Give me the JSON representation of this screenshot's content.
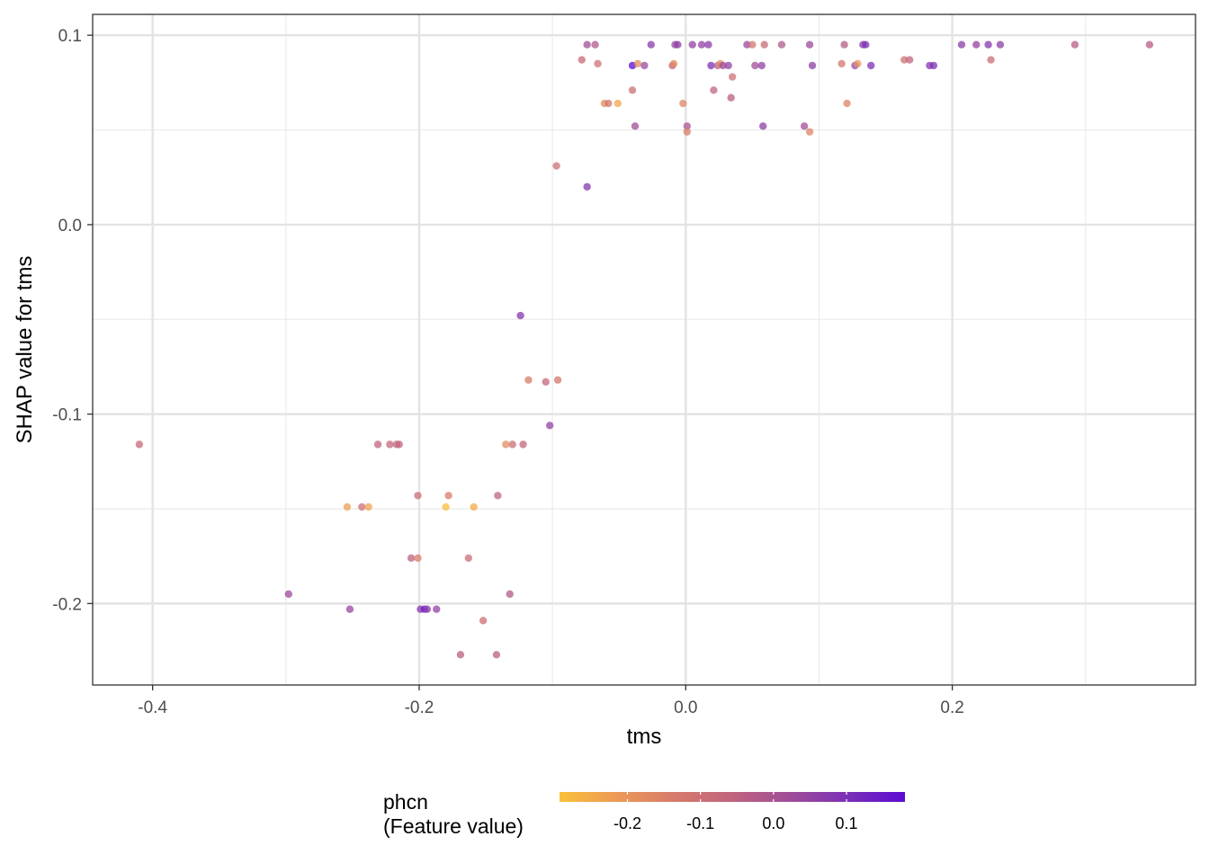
{
  "chart_data": {
    "type": "scatter",
    "xlabel": "tms",
    "ylabel": "SHAP value for tms",
    "xlim": [
      -0.445,
      0.3825
    ],
    "ylim": [
      -0.243,
      0.111
    ],
    "x_ticks": [
      -0.4,
      -0.2,
      0.0,
      0.2
    ],
    "x_tick_labels": [
      "-0.4",
      "-0.2",
      "0.0",
      "0.2"
    ],
    "y_ticks": [
      -0.2,
      -0.1,
      0.0,
      0.1
    ],
    "y_tick_labels": [
      "-0.2",
      "-0.1",
      "0.0",
      "0.1"
    ],
    "grid": true,
    "legend": {
      "title_line1": "phcn",
      "title_line2": "(Feature value)",
      "position": "bottom",
      "range": [
        -0.293,
        0.18
      ],
      "ticks": [
        -0.2,
        -0.1,
        0.0,
        0.1
      ],
      "tick_labels": [
        "-0.2",
        "-0.1",
        "0.0",
        "0.1"
      ],
      "colors": [
        "#fbbf3a",
        "#ec9a55",
        "#d67a6b",
        "#c0637e",
        "#a04d98",
        "#7b2fb6",
        "#5b0bd3"
      ]
    },
    "points": [
      {
        "x": -0.41,
        "y": -0.116,
        "c": -0.08
      },
      {
        "x": -0.298,
        "y": -0.195,
        "c": 0.03
      },
      {
        "x": -0.254,
        "y": -0.149,
        "c": -0.22
      },
      {
        "x": -0.252,
        "y": -0.203,
        "c": 0.04
      },
      {
        "x": -0.243,
        "y": -0.149,
        "c": -0.1
      },
      {
        "x": -0.238,
        "y": -0.149,
        "c": -0.23
      },
      {
        "x": -0.231,
        "y": -0.116,
        "c": -0.06
      },
      {
        "x": -0.222,
        "y": -0.116,
        "c": -0.07
      },
      {
        "x": -0.217,
        "y": -0.116,
        "c": -0.07
      },
      {
        "x": -0.215,
        "y": -0.116,
        "c": -0.06
      },
      {
        "x": -0.206,
        "y": -0.176,
        "c": -0.05
      },
      {
        "x": -0.201,
        "y": -0.176,
        "c": -0.14
      },
      {
        "x": -0.201,
        "y": -0.143,
        "c": -0.09
      },
      {
        "x": -0.199,
        "y": -0.203,
        "c": 0.08
      },
      {
        "x": -0.196,
        "y": -0.203,
        "c": 0.14
      },
      {
        "x": -0.194,
        "y": -0.203,
        "c": 0.07
      },
      {
        "x": -0.187,
        "y": -0.203,
        "c": 0.05
      },
      {
        "x": -0.18,
        "y": -0.149,
        "c": -0.29
      },
      {
        "x": -0.178,
        "y": -0.143,
        "c": -0.14
      },
      {
        "x": -0.169,
        "y": -0.227,
        "c": -0.04
      },
      {
        "x": -0.163,
        "y": -0.176,
        "c": -0.09
      },
      {
        "x": -0.159,
        "y": -0.149,
        "c": -0.25
      },
      {
        "x": -0.152,
        "y": -0.209,
        "c": -0.1
      },
      {
        "x": -0.141,
        "y": -0.143,
        "c": -0.06
      },
      {
        "x": -0.142,
        "y": -0.227,
        "c": -0.04
      },
      {
        "x": -0.135,
        "y": -0.116,
        "c": -0.18
      },
      {
        "x": -0.132,
        "y": -0.195,
        "c": -0.02
      },
      {
        "x": -0.13,
        "y": -0.116,
        "c": -0.09
      },
      {
        "x": -0.124,
        "y": -0.048,
        "c": 0.08
      },
      {
        "x": -0.122,
        "y": -0.116,
        "c": -0.07
      },
      {
        "x": -0.118,
        "y": -0.082,
        "c": -0.14
      },
      {
        "x": -0.105,
        "y": -0.083,
        "c": -0.07
      },
      {
        "x": -0.102,
        "y": -0.106,
        "c": 0.05
      },
      {
        "x": -0.097,
        "y": 0.031,
        "c": -0.1
      },
      {
        "x": -0.096,
        "y": -0.082,
        "c": -0.12
      },
      {
        "x": -0.078,
        "y": 0.087,
        "c": -0.08
      },
      {
        "x": -0.074,
        "y": 0.095,
        "c": 0.02
      },
      {
        "x": -0.074,
        "y": 0.02,
        "c": 0.08
      },
      {
        "x": -0.068,
        "y": 0.095,
        "c": -0.02
      },
      {
        "x": -0.066,
        "y": 0.085,
        "c": -0.1
      },
      {
        "x": -0.061,
        "y": 0.064,
        "c": -0.18
      },
      {
        "x": -0.058,
        "y": 0.064,
        "c": -0.12
      },
      {
        "x": -0.051,
        "y": 0.064,
        "c": -0.24
      },
      {
        "x": -0.04,
        "y": 0.084,
        "c": 0.18
      },
      {
        "x": -0.04,
        "y": 0.071,
        "c": -0.1
      },
      {
        "x": -0.038,
        "y": 0.052,
        "c": 0.02
      },
      {
        "x": -0.036,
        "y": 0.085,
        "c": -0.18
      },
      {
        "x": -0.031,
        "y": 0.084,
        "c": 0.03
      },
      {
        "x": -0.026,
        "y": 0.095,
        "c": 0.07
      },
      {
        "x": -0.01,
        "y": 0.084,
        "c": -0.05
      },
      {
        "x": -0.009,
        "y": 0.085,
        "c": -0.18
      },
      {
        "x": -0.008,
        "y": 0.095,
        "c": 0.04
      },
      {
        "x": -0.006,
        "y": 0.095,
        "c": 0.06
      },
      {
        "x": -0.002,
        "y": 0.064,
        "c": -0.16
      },
      {
        "x": 0.001,
        "y": 0.052,
        "c": 0.0
      },
      {
        "x": 0.001,
        "y": 0.049,
        "c": -0.14
      },
      {
        "x": 0.005,
        "y": 0.095,
        "c": 0.05
      },
      {
        "x": 0.012,
        "y": 0.095,
        "c": 0.05
      },
      {
        "x": 0.017,
        "y": 0.095,
        "c": 0.07
      },
      {
        "x": 0.019,
        "y": 0.084,
        "c": 0.1
      },
      {
        "x": 0.021,
        "y": 0.071,
        "c": -0.06
      },
      {
        "x": 0.024,
        "y": 0.084,
        "c": -0.04
      },
      {
        "x": 0.026,
        "y": 0.085,
        "c": -0.18
      },
      {
        "x": 0.028,
        "y": 0.084,
        "c": 0.03
      },
      {
        "x": 0.032,
        "y": 0.084,
        "c": 0.05
      },
      {
        "x": 0.034,
        "y": 0.067,
        "c": -0.04
      },
      {
        "x": 0.035,
        "y": 0.078,
        "c": -0.1
      },
      {
        "x": 0.046,
        "y": 0.095,
        "c": 0.04
      },
      {
        "x": 0.05,
        "y": 0.095,
        "c": -0.12
      },
      {
        "x": 0.052,
        "y": 0.084,
        "c": 0.02
      },
      {
        "x": 0.057,
        "y": 0.084,
        "c": 0.05
      },
      {
        "x": 0.058,
        "y": 0.052,
        "c": 0.06
      },
      {
        "x": 0.059,
        "y": 0.095,
        "c": -0.08
      },
      {
        "x": 0.072,
        "y": 0.095,
        "c": -0.02
      },
      {
        "x": 0.089,
        "y": 0.052,
        "c": 0.02
      },
      {
        "x": 0.093,
        "y": 0.049,
        "c": -0.16
      },
      {
        "x": 0.093,
        "y": 0.095,
        "c": 0.03
      },
      {
        "x": 0.095,
        "y": 0.084,
        "c": 0.06
      },
      {
        "x": 0.117,
        "y": 0.085,
        "c": -0.12
      },
      {
        "x": 0.119,
        "y": 0.095,
        "c": -0.03
      },
      {
        "x": 0.121,
        "y": 0.064,
        "c": -0.16
      },
      {
        "x": 0.127,
        "y": 0.084,
        "c": 0.04
      },
      {
        "x": 0.129,
        "y": 0.085,
        "c": -0.2
      },
      {
        "x": 0.133,
        "y": 0.095,
        "c": 0.07
      },
      {
        "x": 0.135,
        "y": 0.095,
        "c": 0.1
      },
      {
        "x": 0.139,
        "y": 0.084,
        "c": 0.1
      },
      {
        "x": 0.164,
        "y": 0.087,
        "c": -0.1
      },
      {
        "x": 0.168,
        "y": 0.087,
        "c": -0.06
      },
      {
        "x": 0.183,
        "y": 0.084,
        "c": 0.08
      },
      {
        "x": 0.186,
        "y": 0.084,
        "c": 0.1
      },
      {
        "x": 0.207,
        "y": 0.095,
        "c": 0.06
      },
      {
        "x": 0.218,
        "y": 0.095,
        "c": 0.05
      },
      {
        "x": 0.227,
        "y": 0.095,
        "c": 0.08
      },
      {
        "x": 0.229,
        "y": 0.087,
        "c": -0.09
      },
      {
        "x": 0.236,
        "y": 0.095,
        "c": 0.06
      },
      {
        "x": 0.292,
        "y": 0.095,
        "c": -0.03
      },
      {
        "x": 0.348,
        "y": 0.095,
        "c": -0.04
      }
    ]
  }
}
